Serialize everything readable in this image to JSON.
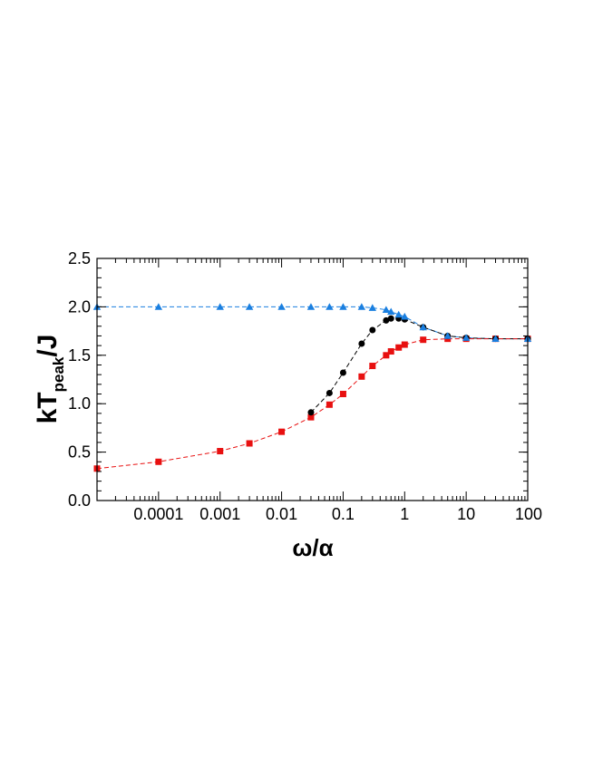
{
  "chart_data": {
    "type": "scatter",
    "xscale": "log",
    "xlim": [
      1e-05,
      100
    ],
    "ylim": [
      0,
      2.5
    ],
    "xlabel": "ω/α",
    "ylabel_main": "kT",
    "ylabel_sub": "peak",
    "ylabel_tail": "/J",
    "x_ticks": [
      {
        "value": 0.0001,
        "label": "0.0001"
      },
      {
        "value": 0.001,
        "label": "0.001"
      },
      {
        "value": 0.01,
        "label": "0.01"
      },
      {
        "value": 0.1,
        "label": "0.1"
      },
      {
        "value": 1,
        "label": "1"
      },
      {
        "value": 10,
        "label": "10"
      },
      {
        "value": 100,
        "label": "100"
      }
    ],
    "y_ticks": [
      {
        "value": 0,
        "label": "0.0"
      },
      {
        "value": 0.5,
        "label": "0.5"
      },
      {
        "value": 1,
        "label": "1.0"
      },
      {
        "value": 1.5,
        "label": "1.5"
      },
      {
        "value": 2,
        "label": "2.0"
      },
      {
        "value": 2.5,
        "label": "2.5"
      }
    ],
    "grid": false,
    "series": [
      {
        "marker": "triangle",
        "color": "#1a7fe0",
        "x": [
          1e-05,
          0.0001,
          0.001,
          0.003,
          0.01,
          0.03,
          0.06,
          0.1,
          0.2,
          0.3,
          0.5,
          0.6,
          0.8,
          1,
          2,
          5,
          10,
          30,
          100
        ],
        "y": [
          2.0,
          2.0,
          2.0,
          2.0,
          2.0,
          2.0,
          2.0,
          2.0,
          2.0,
          1.99,
          1.97,
          1.95,
          1.92,
          1.9,
          1.79,
          1.7,
          1.68,
          1.67,
          1.67
        ]
      },
      {
        "marker": "circle",
        "color": "#000000",
        "x": [
          0.03,
          0.06,
          0.1,
          0.2,
          0.3,
          0.5,
          0.6,
          0.8,
          1,
          2,
          5,
          10,
          30,
          100
        ],
        "y": [
          0.91,
          1.11,
          1.32,
          1.62,
          1.76,
          1.86,
          1.88,
          1.88,
          1.87,
          1.79,
          1.7,
          1.68,
          1.67,
          1.67
        ]
      },
      {
        "marker": "square",
        "color": "#e81010",
        "x": [
          1e-05,
          0.0001,
          0.001,
          0.003,
          0.01,
          0.03,
          0.06,
          0.1,
          0.2,
          0.3,
          0.5,
          0.6,
          0.8,
          1,
          2,
          5,
          10,
          30,
          100
        ],
        "y": [
          0.33,
          0.4,
          0.51,
          0.59,
          0.71,
          0.86,
          0.99,
          1.1,
          1.28,
          1.39,
          1.5,
          1.54,
          1.58,
          1.61,
          1.66,
          1.67,
          1.67,
          1.67,
          1.67
        ]
      }
    ]
  }
}
